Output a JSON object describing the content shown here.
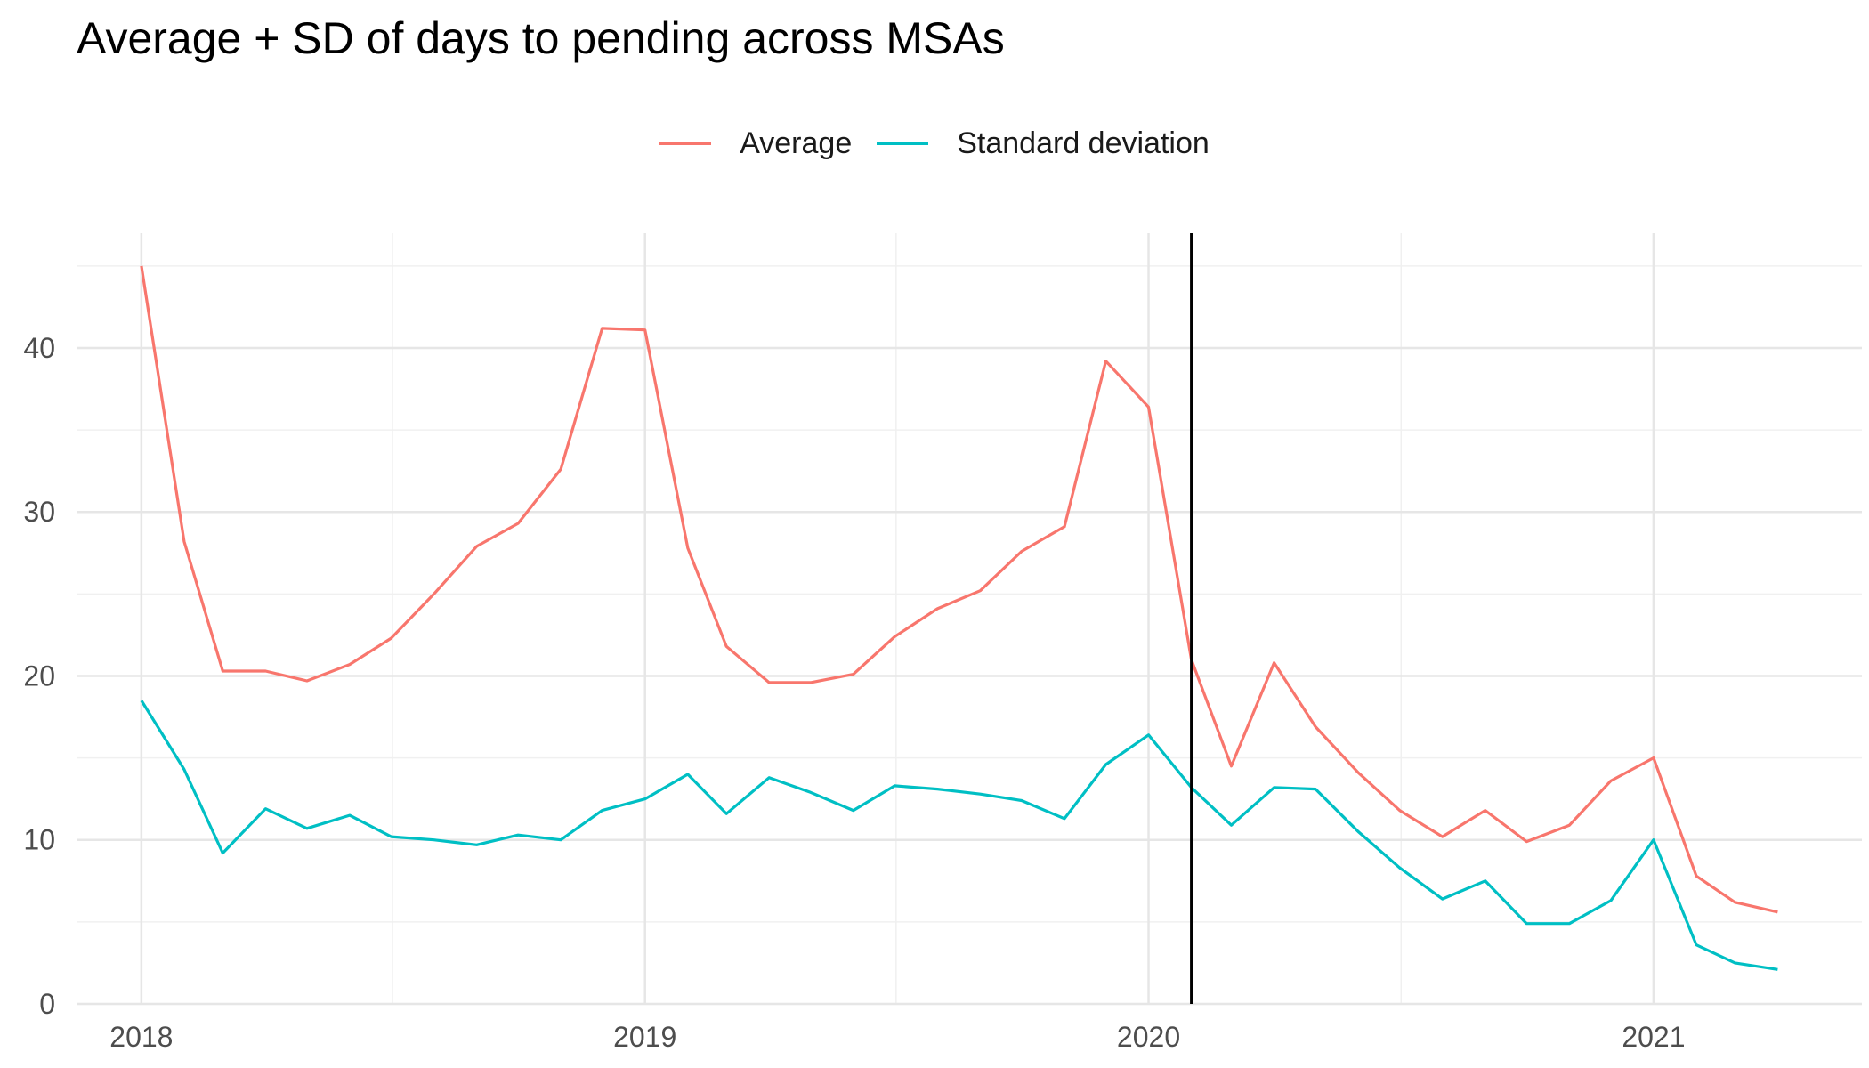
{
  "chart_data": {
    "type": "line",
    "title": "Average + SD of days to pending across MSAs",
    "xlabel": "",
    "ylabel": "",
    "xlim": [
      "2017-11-15",
      "2021-06-01"
    ],
    "ylim": [
      0,
      47
    ],
    "x_ticks": [
      "2018",
      "2019",
      "2020",
      "2021"
    ],
    "y_ticks": [
      "0",
      "10",
      "20",
      "30",
      "40"
    ],
    "grid": true,
    "legend": "top",
    "vertical_line": "2020-02-01",
    "x": [
      "2018-01-01",
      "2018-02-01",
      "2018-03-01",
      "2018-04-01",
      "2018-05-01",
      "2018-06-01",
      "2018-07-01",
      "2018-08-01",
      "2018-09-01",
      "2018-10-01",
      "2018-11-01",
      "2018-12-01",
      "2019-01-01",
      "2019-02-01",
      "2019-03-01",
      "2019-04-01",
      "2019-05-01",
      "2019-06-01",
      "2019-07-01",
      "2019-08-01",
      "2019-09-01",
      "2019-10-01",
      "2019-11-01",
      "2019-12-01",
      "2020-01-01",
      "2020-02-01",
      "2020-03-01",
      "2020-04-01",
      "2020-05-01",
      "2020-06-01",
      "2020-07-01",
      "2020-08-01",
      "2020-09-01",
      "2020-10-01",
      "2020-11-01",
      "2020-12-01",
      "2021-01-01",
      "2021-02-01",
      "2021-03-01",
      "2021-04-01"
    ],
    "series": [
      {
        "name": "Average",
        "color": "#F8766D",
        "values": [
          45.0,
          28.2,
          20.3,
          20.3,
          19.7,
          20.7,
          22.3,
          25.0,
          27.9,
          29.3,
          32.6,
          41.2,
          41.1,
          27.8,
          21.8,
          19.6,
          19.6,
          20.1,
          22.4,
          24.1,
          25.2,
          27.6,
          29.1,
          39.2,
          36.4,
          21.0,
          14.5,
          20.8,
          16.9,
          14.1,
          11.8,
          10.2,
          11.8,
          9.9,
          10.9,
          13.6,
          15.0,
          7.8,
          6.2,
          5.6
        ]
      },
      {
        "name": "Standard deviation",
        "color": "#00BFC4",
        "values": [
          18.5,
          14.3,
          9.2,
          11.9,
          10.7,
          11.5,
          10.2,
          10.0,
          9.7,
          10.3,
          10.0,
          11.8,
          12.5,
          14.0,
          11.6,
          13.8,
          12.9,
          11.8,
          13.3,
          13.1,
          12.8,
          12.4,
          11.3,
          14.6,
          16.4,
          13.2,
          10.9,
          13.2,
          13.1,
          10.5,
          8.3,
          6.4,
          7.5,
          4.9,
          4.9,
          6.3,
          10.0,
          3.6,
          2.5,
          2.1
        ]
      }
    ]
  }
}
